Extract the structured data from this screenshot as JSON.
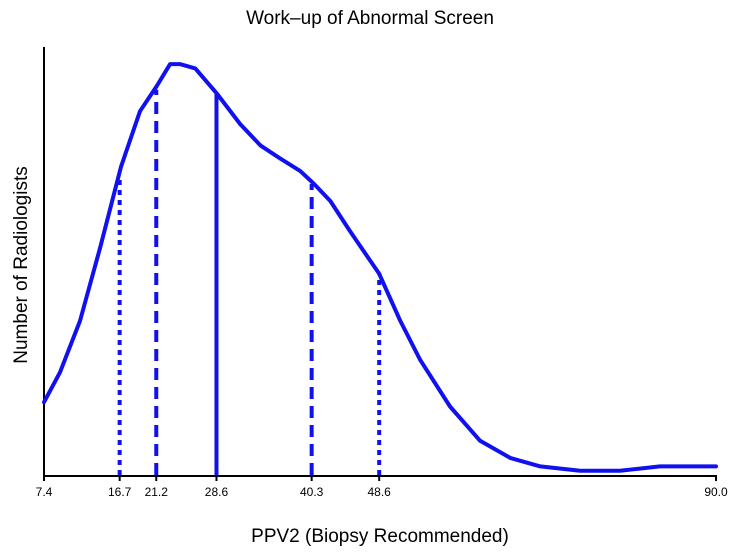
{
  "chart_data": {
    "type": "line",
    "title": "Work–up of Abnormal Screen",
    "x_label": "PPV2 (Biopsy Recommended)",
    "y_label": "Number of Radiologists",
    "color": "#1010f0",
    "x": [
      7.4,
      9.37,
      11.83,
      14.28,
      16.86,
      19.2,
      21.3,
      22.9,
      24.1,
      26.0,
      28.7,
      31.5,
      34.0,
      36.4,
      38.9,
      40.6,
      42.6,
      45.0,
      48.6,
      51.2,
      53.6,
      57.3,
      61.0,
      64.7,
      68.4,
      73.3,
      78.2,
      83.1,
      88.1,
      90.0
    ],
    "values": [
      0.17,
      0.24,
      0.36,
      0.53,
      0.72,
      0.85,
      0.91,
      0.96,
      0.96,
      0.95,
      0.89,
      0.82,
      0.77,
      0.74,
      0.71,
      0.68,
      0.64,
      0.57,
      0.47,
      0.36,
      0.27,
      0.16,
      0.08,
      0.04,
      0.02,
      0.01,
      0.01,
      0.02,
      0.02,
      0.02
    ],
    "vlines": [
      {
        "x": 16.7,
        "value": 0.69,
        "style": "dotted"
      },
      {
        "x": 21.2,
        "value": 0.9,
        "style": "dashed"
      },
      {
        "x": 28.6,
        "value": 0.89,
        "style": "solid"
      },
      {
        "x": 40.3,
        "value": 0.68,
        "style": "dashed"
      },
      {
        "x": 48.6,
        "value": 0.47,
        "style": "dotted"
      }
    ],
    "xlim": [
      7.4,
      90.0
    ],
    "ylim": [
      0,
      1
    ],
    "xticks": [
      7.4,
      16.7,
      21.2,
      28.6,
      40.3,
      48.6,
      {
        "value": 90.0,
        "label": "90.0"
      }
    ]
  }
}
